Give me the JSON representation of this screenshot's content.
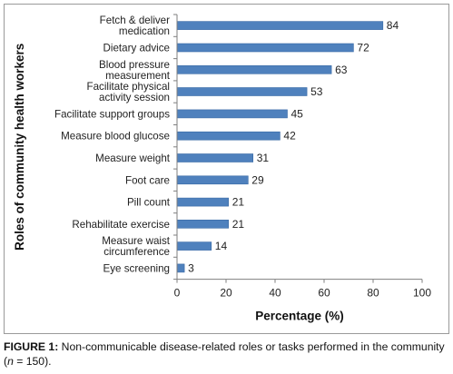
{
  "chart_data": {
    "type": "bar",
    "orientation": "horizontal",
    "categories": [
      [
        "Fetch & deliver",
        "medication"
      ],
      [
        "Dietary advice"
      ],
      [
        "Blood pressure",
        "measurement"
      ],
      [
        "Facilitate physical",
        "activity session"
      ],
      [
        "Facilitate support groups"
      ],
      [
        "Measure blood glucose"
      ],
      [
        "Measure weight"
      ],
      [
        "Foot care"
      ],
      [
        "Pill count"
      ],
      [
        "Rehabilitate exercise"
      ],
      [
        "Measure waist",
        "circumference"
      ],
      [
        "Eye screening"
      ]
    ],
    "values": [
      84,
      72,
      63,
      53,
      45,
      42,
      31,
      29,
      21,
      21,
      14,
      3
    ],
    "xlabel": "Percentage (%)",
    "ylabel": "Roles of community health workers",
    "xlim": [
      0,
      100
    ],
    "xticks": [
      0,
      20,
      40,
      60,
      80,
      100
    ],
    "grid": false,
    "bar_color": "#4f81bd",
    "bar_edge_color": "#3a6aa5"
  },
  "caption": {
    "label": "FIGURE 1:",
    "text": " Non-communicable disease-related roles or tasks performed in the community (",
    "n_var": "n",
    "n_rest": " = 150)."
  }
}
